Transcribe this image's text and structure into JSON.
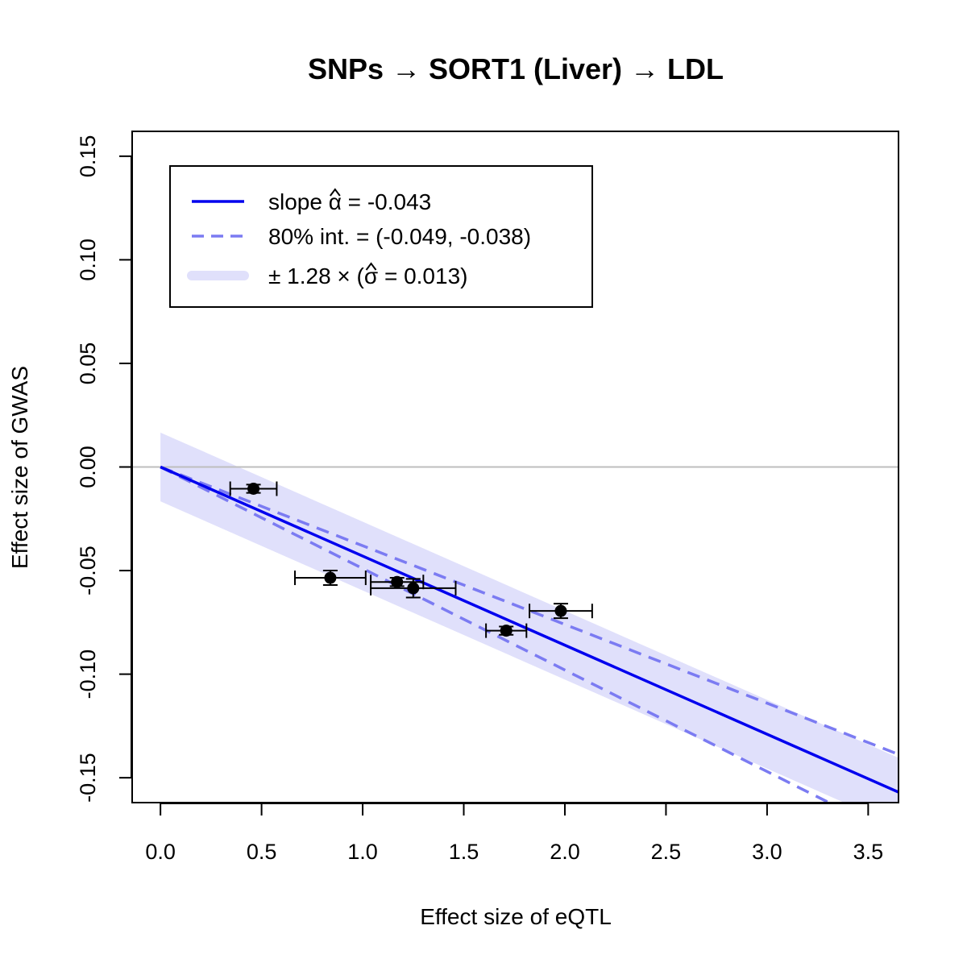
{
  "chart_data": {
    "type": "scatter",
    "title": "SNPs → SORT1 (Liver) → LDL",
    "xlabel": "Effect size of eQTL",
    "ylabel": "Effect size of GWAS",
    "xlim": [
      -0.14,
      3.65
    ],
    "ylim": [
      -0.162,
      0.162
    ],
    "x_ticks": [
      "0.0",
      "0.5",
      "1.0",
      "1.5",
      "2.0",
      "2.5",
      "3.0",
      "3.5"
    ],
    "y_ticks": [
      "-0.15",
      "-0.10",
      "-0.05",
      "0.00",
      "0.05",
      "0.10",
      "0.15"
    ],
    "reference_line_y": 0,
    "fit": {
      "slope": -0.043,
      "interval_low_slope": -0.049,
      "interval_high_slope": -0.038,
      "band_halfwidth": 0.0166,
      "band_x_range": [
        0,
        3.65
      ]
    },
    "points": [
      {
        "x": 0.46,
        "y": -0.0105,
        "x_err": 0.115,
        "y_err": 0.002
      },
      {
        "x": 0.84,
        "y": -0.0535,
        "x_err": 0.175,
        "y_err": 0.0035
      },
      {
        "x": 1.17,
        "y": -0.0555,
        "x_err": 0.13,
        "y_err": 0.002
      },
      {
        "x": 1.25,
        "y": -0.0585,
        "x_err": 0.21,
        "y_err": 0.0045
      },
      {
        "x": 1.71,
        "y": -0.079,
        "x_err": 0.1,
        "y_err": 0.002
      },
      {
        "x": 1.98,
        "y": -0.0695,
        "x_err": 0.155,
        "y_err": 0.0035
      }
    ],
    "legend": {
      "position": "top-left",
      "entries": [
        {
          "pre": "slope ",
          "symbol": "α",
          "post": " = -0.043",
          "style": "solid"
        },
        {
          "pre": "80% int. = (-0.049, -0.038)",
          "symbol": "",
          "post": "",
          "style": "dashed"
        },
        {
          "pre": "± 1.28 × (",
          "symbol": "σ",
          "post": " = 0.013)",
          "style": "band"
        }
      ]
    },
    "colors": {
      "fit_line": "#0000ee",
      "interval_line": "#7b7bf2",
      "band": "#e0e0fb",
      "reference_line": "#bebebe",
      "points": "#000000",
      "frame": "#000000"
    }
  }
}
